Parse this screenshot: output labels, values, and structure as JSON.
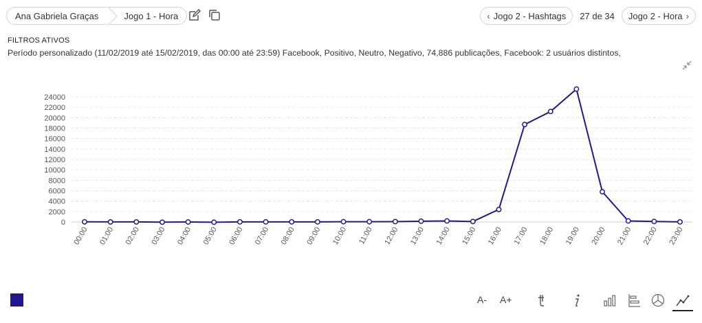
{
  "breadcrumb": {
    "items": [
      {
        "label": "Ana Gabriela Graças"
      },
      {
        "label": "Jogo 1 - Hora"
      }
    ]
  },
  "toolbar": {
    "edit_icon": "edit-icon",
    "copy_icon": "copy-icon"
  },
  "pager": {
    "prev_label": "Jogo 2 - Hashtags",
    "count": "27 de 34",
    "next_label": "Jogo 2 - Hora"
  },
  "filters": {
    "title": "FILTROS ATIVOS",
    "text": "Período personalizado (11/02/2019 até 15/02/2019, das 00:00 até 23:59) Facebook, Positivo, Neutro, Negativo, 74,886 publicações, Facebook: 2 usuários distintos,"
  },
  "chart_data": {
    "type": "line",
    "categories": [
      "00:00",
      "01:00",
      "02:00",
      "03:00",
      "04:00",
      "05:00",
      "06:00",
      "07:00",
      "08:00",
      "09:00",
      "10:00",
      "11:00",
      "12:00",
      "13:00",
      "14:00",
      "15:00",
      "16:00",
      "17:00",
      "18:00",
      "19:00",
      "20:00",
      "21:00",
      "22:00",
      "23:00"
    ],
    "series": [
      {
        "values": [
          30,
          10,
          10,
          -40,
          0,
          -50,
          20,
          20,
          20,
          20,
          50,
          50,
          70,
          150,
          200,
          90,
          2400,
          18700,
          21200,
          25500,
          5800,
          200,
          100,
          20
        ],
        "color": "#22178f"
      }
    ],
    "yticks": [
      0,
      2000,
      4000,
      6000,
      8000,
      10000,
      12000,
      14000,
      16000,
      18000,
      20000,
      22000,
      24000
    ],
    "ylim": [
      0,
      24000
    ],
    "grid": true,
    "legend": "bottom-left"
  },
  "legend": {
    "color": "#22178f"
  },
  "bottom_toolbar": {
    "font_decrease": "A-",
    "font_increase": "A+",
    "icons": [
      "text-icon",
      "info-icon",
      "bar-chart-icon",
      "horizontal-bar-icon",
      "pie-chart-icon",
      "line-chart-icon"
    ]
  }
}
